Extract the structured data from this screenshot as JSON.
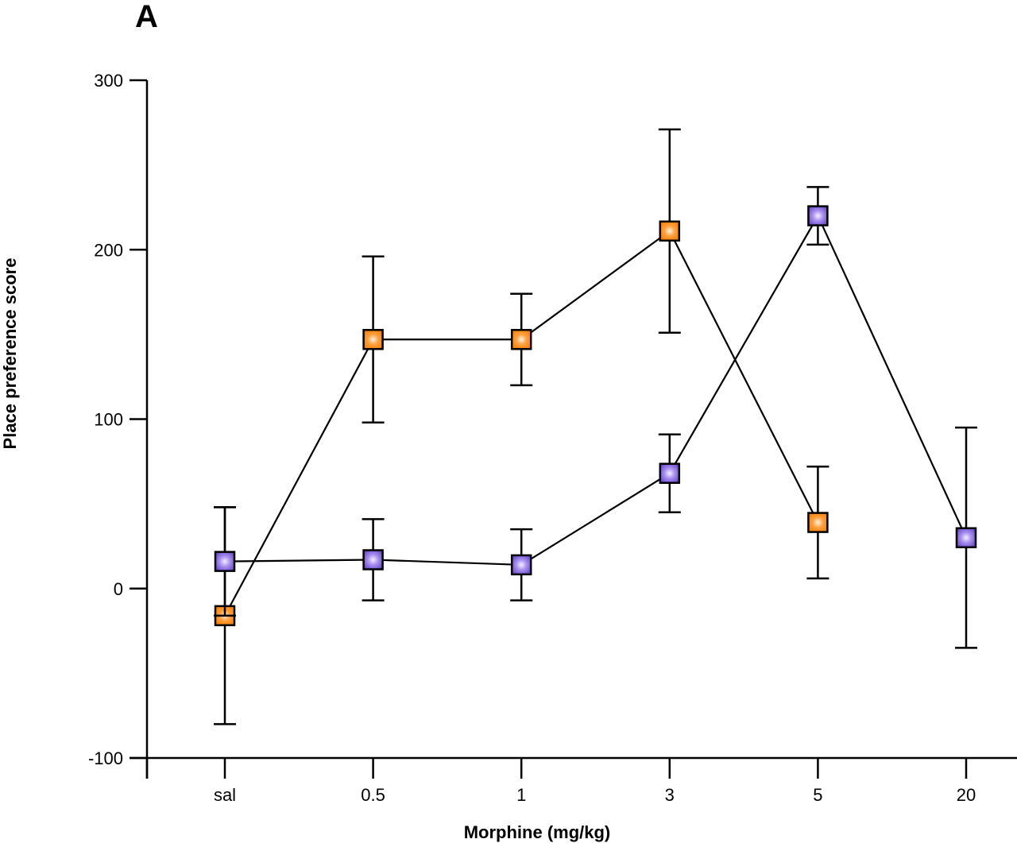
{
  "figure": {
    "panel_label": "A"
  },
  "chart_data": {
    "type": "line",
    "title": "",
    "panel_label": "A",
    "xlabel": "Morphine (mg/kg)",
    "ylabel": "Place preference score",
    "categories": [
      "sal",
      "0.5",
      "1",
      "3",
      "5",
      "20"
    ],
    "ylim": [
      -100,
      300
    ],
    "yticks": [
      -100,
      0,
      100,
      200,
      300
    ],
    "grid": false,
    "legend": "none",
    "error_bars": "yes",
    "series": [
      {
        "name": "orange",
        "color": "#ff8c1a",
        "marker": "square",
        "categories": [
          "sal",
          "0.5",
          "1",
          "3",
          "5"
        ],
        "values": [
          -16,
          147,
          147,
          211,
          39
        ],
        "errors": [
          64,
          49,
          27,
          60,
          33
        ]
      },
      {
        "name": "purple",
        "color": "#7b5cd6",
        "marker": "square",
        "categories": [
          "sal",
          "0.5",
          "1",
          "3",
          "5",
          "20"
        ],
        "values": [
          16,
          17,
          14,
          68,
          220,
          30
        ],
        "errors": [
          32,
          24,
          21,
          23,
          17,
          65
        ]
      }
    ]
  }
}
